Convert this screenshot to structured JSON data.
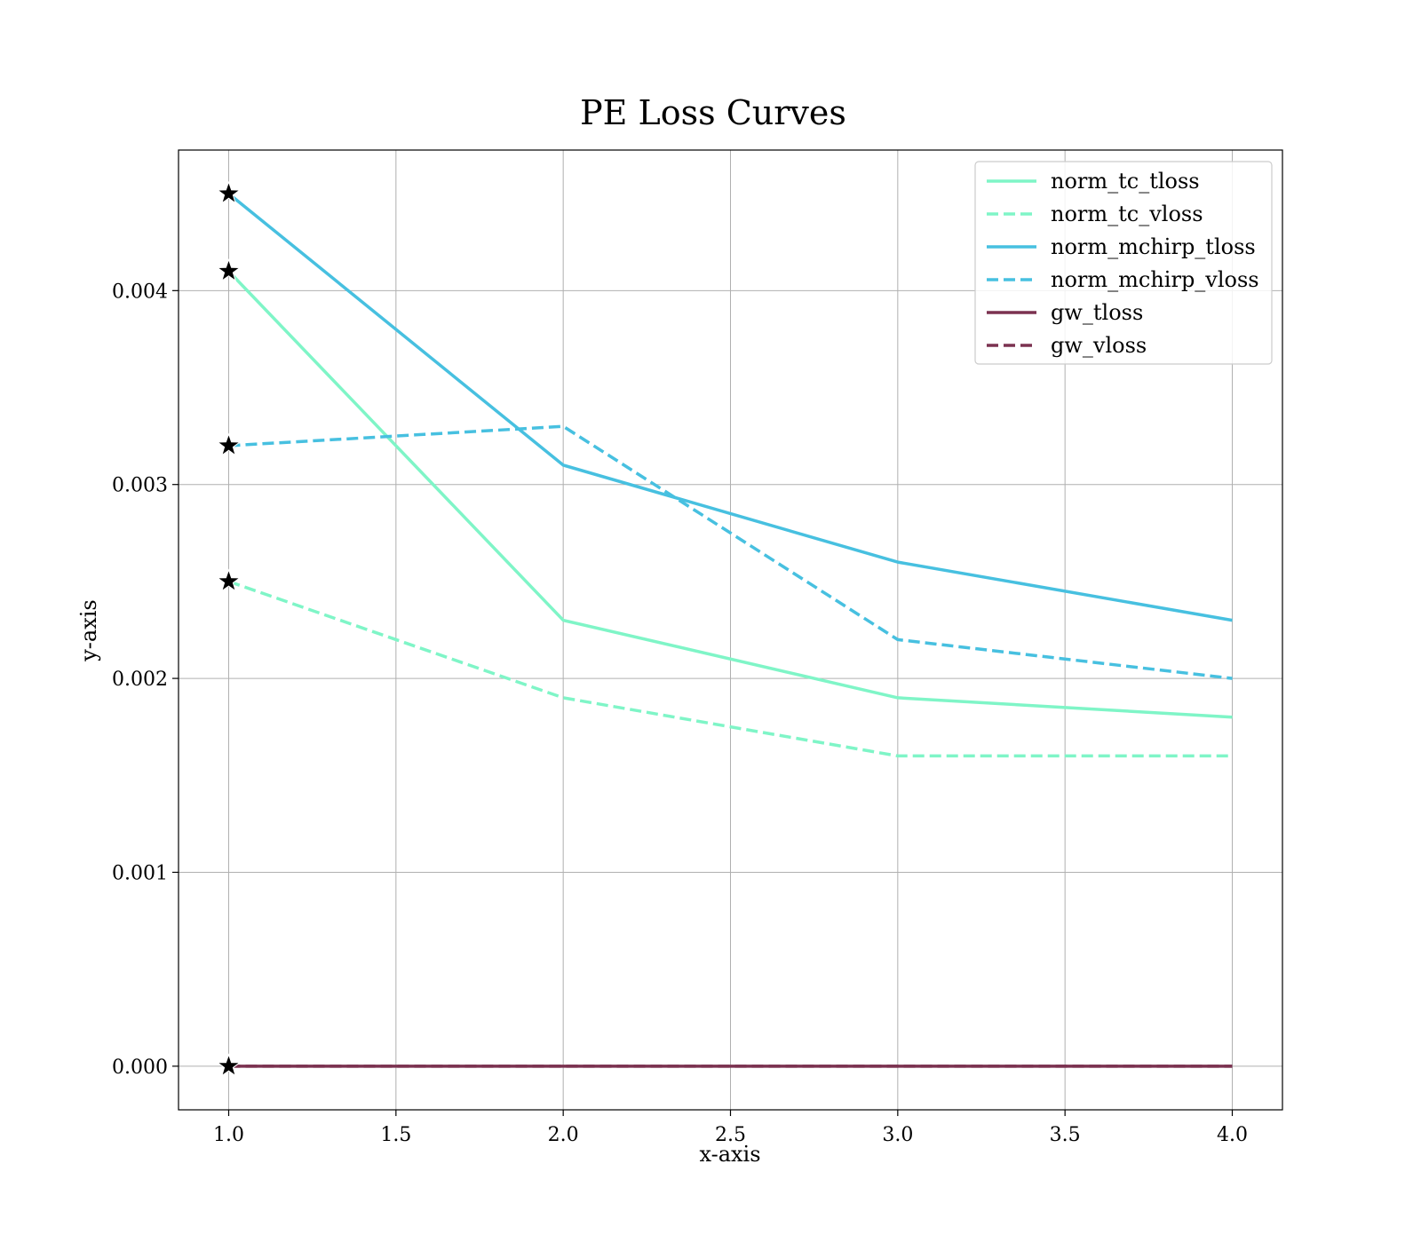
{
  "chart_data": {
    "type": "line",
    "title": "PE Loss Curves",
    "xlabel": "x-axis",
    "ylabel": "y-axis",
    "x": [
      1,
      2,
      3,
      4
    ],
    "xlim": [
      0.85,
      4.15
    ],
    "ylim": [
      -0.000225,
      0.004725
    ],
    "xticks": [
      1.0,
      1.5,
      2.0,
      2.5,
      3.0,
      3.5,
      4.0
    ],
    "xtick_labels": [
      "1.0",
      "1.5",
      "2.0",
      "2.5",
      "3.0",
      "3.5",
      "4.0"
    ],
    "yticks": [
      0.0,
      0.001,
      0.002,
      0.003,
      0.004
    ],
    "ytick_labels": [
      "0.000",
      "0.001",
      "0.002",
      "0.003",
      "0.004"
    ],
    "grid": true,
    "legend_position": "top-right",
    "series": [
      {
        "name": "norm_tc_tloss",
        "values": [
          0.0041,
          0.0023,
          0.0019,
          0.0018
        ],
        "color": "#7ff5c7",
        "dashed": false
      },
      {
        "name": "norm_tc_vloss",
        "values": [
          0.0025,
          0.0019,
          0.0016,
          0.0016
        ],
        "color": "#7ff5c7",
        "dashed": true
      },
      {
        "name": "norm_mchirp_tloss",
        "values": [
          0.0045,
          0.0031,
          0.0026,
          0.0023
        ],
        "color": "#47c0e0",
        "dashed": false
      },
      {
        "name": "norm_mchirp_vloss",
        "values": [
          0.0032,
          0.0033,
          0.0022,
          0.002
        ],
        "color": "#47c0e0",
        "dashed": true
      },
      {
        "name": "gw_tloss",
        "values": [
          0.0,
          0.0,
          0.0,
          0.0
        ],
        "color": "#7b3250",
        "dashed": false
      },
      {
        "name": "gw_vloss",
        "values": [
          0.0,
          0.0,
          0.0,
          0.0
        ],
        "color": "#7b3250",
        "dashed": true
      }
    ],
    "markers": {
      "shape": "star",
      "color": "#000000",
      "at_x": 1
    }
  }
}
